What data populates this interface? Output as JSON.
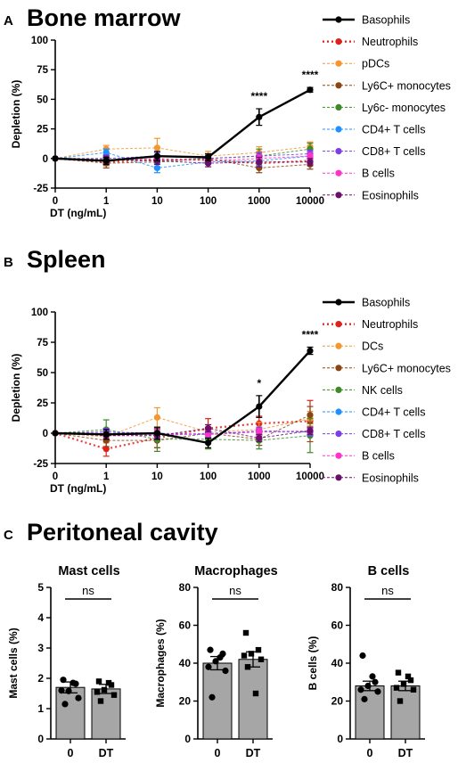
{
  "panels": {
    "a": {
      "letter": "A",
      "title": "Bone marrow"
    },
    "b": {
      "letter": "B",
      "title": "Spleen"
    },
    "c": {
      "letter": "C",
      "title": "Peritoneal cavity"
    }
  },
  "colors": {
    "Basophils": "#000000",
    "Neutrophils": "#e0201b",
    "pDCs": "#f5962f",
    "DCs": "#f5962f",
    "Ly6C+ monocytes": "#8b4513",
    "Ly6c- monocytes": "#3c8a28",
    "NK cells": "#3c8a28",
    "CD4+ T cells": "#1e90ff",
    "CD8+ T cells": "#7b3fe4",
    "B cells": "#ff33cc",
    "Eosinophils": "#6a0f6a",
    "bar": "#a6a6a6"
  },
  "chart_data": [
    {
      "type": "line",
      "panel": "A",
      "title": "Bone marrow",
      "xlabel": "DT (ng/mL)",
      "ylabel": "Depletion (%)",
      "x_scale": "log-like categorical",
      "x": [
        0,
        1,
        10,
        100,
        1000,
        10000
      ],
      "x_tick_labels": [
        "0",
        "1",
        "10",
        "100",
        "1000",
        "10000"
      ],
      "ylim": [
        -25,
        100
      ],
      "y_ticks": [
        "-25",
        "0",
        "25",
        "50",
        "75",
        "100"
      ],
      "legend_position": "right",
      "significance": [
        {
          "x": 1000,
          "label": "****"
        },
        {
          "x": 10000,
          "label": "****"
        }
      ],
      "series": [
        {
          "name": "Basophils",
          "values": [
            0,
            -2,
            2,
            1,
            35,
            58
          ],
          "err": [
            0,
            3,
            4,
            3,
            7,
            2
          ]
        },
        {
          "name": "Neutrophils",
          "values": [
            0,
            -3,
            -1,
            -1,
            -4,
            -2
          ],
          "err": [
            0,
            3,
            3,
            2,
            4,
            3
          ]
        },
        {
          "name": "pDCs",
          "values": [
            0,
            8,
            9,
            2,
            5,
            10
          ],
          "err": [
            0,
            3,
            8,
            4,
            5,
            4
          ]
        },
        {
          "name": "Ly6C+ monocytes",
          "values": [
            0,
            -4,
            -3,
            0,
            -8,
            -5
          ],
          "err": [
            0,
            4,
            5,
            4,
            4,
            4
          ]
        },
        {
          "name": "Ly6c- monocytes",
          "values": [
            0,
            -1,
            -2,
            0,
            2,
            8
          ],
          "err": [
            0,
            4,
            5,
            3,
            6,
            5
          ]
        },
        {
          "name": "CD4+ T cells",
          "values": [
            0,
            5,
            -8,
            -3,
            -2,
            2
          ],
          "err": [
            0,
            3,
            4,
            2,
            4,
            4
          ]
        },
        {
          "name": "CD8+ T cells",
          "values": [
            0,
            0,
            2,
            0,
            2,
            4
          ],
          "err": [
            0,
            3,
            3,
            2,
            3,
            3
          ]
        },
        {
          "name": "B cells",
          "values": [
            0,
            -2,
            0,
            -2,
            0,
            2
          ],
          "err": [
            0,
            3,
            3,
            2,
            3,
            3
          ]
        },
        {
          "name": "Eosinophils",
          "values": [
            0,
            -1,
            -2,
            -4,
            -3,
            -3
          ],
          "err": [
            0,
            3,
            3,
            3,
            4,
            3
          ]
        }
      ]
    },
    {
      "type": "line",
      "panel": "B",
      "title": "Spleen",
      "xlabel": "DT (ng/mL)",
      "ylabel": "Depletion (%)",
      "x_scale": "log-like categorical",
      "x": [
        0,
        1,
        10,
        100,
        1000,
        10000
      ],
      "x_tick_labels": [
        "0",
        "1",
        "10",
        "100",
        "1000",
        "10000"
      ],
      "ylim": [
        -25,
        100
      ],
      "y_ticks": [
        "-25",
        "0",
        "25",
        "50",
        "75",
        "100"
      ],
      "legend_position": "right",
      "significance": [
        {
          "x": 1000,
          "label": "*"
        },
        {
          "x": 10000,
          "label": "****"
        }
      ],
      "series": [
        {
          "name": "Basophils",
          "values": [
            0,
            -1,
            0,
            -8,
            22,
            68
          ],
          "err": [
            0,
            4,
            5,
            4,
            9,
            3
          ]
        },
        {
          "name": "Neutrophils",
          "values": [
            0,
            -13,
            -4,
            4,
            8,
            10
          ],
          "err": [
            0,
            6,
            8,
            8,
            6,
            17
          ]
        },
        {
          "name": "DCs",
          "values": [
            0,
            -3,
            13,
            1,
            3,
            12
          ],
          "err": [
            0,
            5,
            8,
            6,
            6,
            6
          ]
        },
        {
          "name": "Ly6C+ monocytes",
          "values": [
            0,
            -6,
            -6,
            0,
            -5,
            15
          ],
          "err": [
            0,
            5,
            6,
            5,
            5,
            7
          ]
        },
        {
          "name": "NK cells",
          "values": [
            0,
            3,
            -5,
            -5,
            -6,
            -2
          ],
          "err": [
            0,
            8,
            10,
            8,
            7,
            14
          ]
        },
        {
          "name": "CD4+ T cells",
          "values": [
            0,
            1,
            -2,
            0,
            1,
            1
          ],
          "err": [
            0,
            3,
            3,
            3,
            3,
            3
          ]
        },
        {
          "name": "CD8+ T cells",
          "values": [
            0,
            1,
            0,
            -1,
            2,
            1
          ],
          "err": [
            0,
            3,
            3,
            3,
            3,
            3
          ]
        },
        {
          "name": "B cells",
          "values": [
            0,
            -2,
            -1,
            -1,
            1,
            2
          ],
          "err": [
            0,
            3,
            3,
            3,
            3,
            3
          ]
        },
        {
          "name": "Eosinophils",
          "values": [
            0,
            -2,
            -2,
            4,
            -4,
            2
          ],
          "err": [
            0,
            3,
            3,
            3,
            3,
            3
          ]
        }
      ]
    },
    {
      "type": "bar",
      "panel": "C",
      "title": "Mast cells",
      "ylabel": "Mast cells (%)",
      "categories": [
        "0",
        "DT"
      ],
      "values": [
        1.7,
        1.65
      ],
      "sem": [
        0.18,
        0.15
      ],
      "ylim": [
        0,
        5
      ],
      "y_ticks": [
        "0",
        "1",
        "2",
        "3",
        "4",
        "5"
      ],
      "comparison": "ns",
      "points": [
        [
          1.95,
          1.82,
          1.58,
          1.35,
          1.15,
          1.85,
          1.6
        ],
        [
          1.9,
          1.78,
          1.62,
          1.45,
          1.25,
          1.85,
          1.55
        ]
      ]
    },
    {
      "type": "bar",
      "panel": "C",
      "title": "Macrophages",
      "ylabel": "Macrophages (%)",
      "categories": [
        "0",
        "DT"
      ],
      "values": [
        40,
        42
      ],
      "sem": [
        3.5,
        4
      ],
      "ylim": [
        0,
        80
      ],
      "y_ticks": [
        "0",
        "20",
        "40",
        "60",
        "80"
      ],
      "comparison": "ns",
      "points": [
        [
          47,
          45,
          41,
          36,
          22,
          43,
          38
        ],
        [
          56,
          47,
          45,
          42,
          38,
          24,
          44
        ]
      ]
    },
    {
      "type": "bar",
      "panel": "C",
      "title": "B cells",
      "ylabel": "B cells (%)",
      "categories": [
        "0",
        "DT"
      ],
      "values": [
        28,
        28
      ],
      "sem": [
        2.5,
        2.5
      ],
      "ylim": [
        0,
        80
      ],
      "y_ticks": [
        "0",
        "20",
        "40",
        "60",
        "80"
      ],
      "comparison": "ns",
      "points": [
        [
          44,
          30,
          28,
          25,
          21,
          33,
          26
        ],
        [
          35,
          31,
          29,
          26,
          20,
          33,
          27
        ]
      ]
    }
  ]
}
